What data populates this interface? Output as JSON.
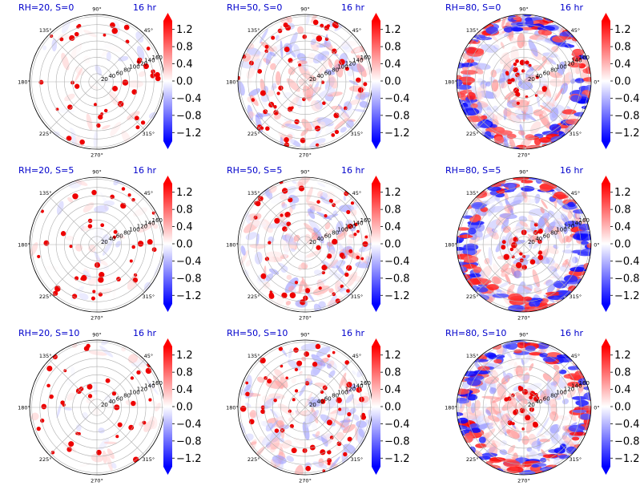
{
  "chart_data": {
    "type": "heatmap",
    "projection": "polar",
    "grid": true,
    "radial_ticks": [
      "20",
      "40",
      "60",
      "80",
      "100",
      "120",
      "140",
      "160"
    ],
    "angle_ticks": [
      "0°",
      "45°",
      "90°",
      "135°",
      "180°",
      "225°",
      "270°",
      "315°"
    ],
    "colorbar": {
      "ticks": [
        "1.2",
        "0.8",
        "0.4",
        "0.0",
        "−0.4",
        "−0.8",
        "−1.2"
      ],
      "tick_values": [
        1.2,
        0.8,
        0.4,
        0.0,
        -0.4,
        -0.8,
        -1.2
      ],
      "range": [
        -1.4,
        1.4
      ],
      "colormap": "bwr",
      "extend": "both"
    },
    "time_label": "16 hr",
    "panels": [
      {
        "label": "RH=20, S=0",
        "rh": 20,
        "s": 0
      },
      {
        "label": "RH=50, S=0",
        "rh": 50,
        "s": 0
      },
      {
        "label": "RH=80, S=0",
        "rh": 80,
        "s": 0
      },
      {
        "label": "RH=20, S=5",
        "rh": 20,
        "s": 5
      },
      {
        "label": "RH=50, S=5",
        "rh": 50,
        "s": 5
      },
      {
        "label": "RH=80, S=5",
        "rh": 80,
        "s": 5
      },
      {
        "label": "RH=20, S=10",
        "rh": 20,
        "s": 10
      },
      {
        "label": "RH=50, S=10",
        "rh": 50,
        "s": 10
      },
      {
        "label": "RH=80, S=10",
        "rh": 80,
        "s": 10
      }
    ]
  },
  "colors": {
    "title": "#0000cc",
    "positive": "#ff0000",
    "negative": "#0000ff",
    "neutral": "#ffffff",
    "grid": "#b0b0b0",
    "tick_text": "#000000"
  }
}
